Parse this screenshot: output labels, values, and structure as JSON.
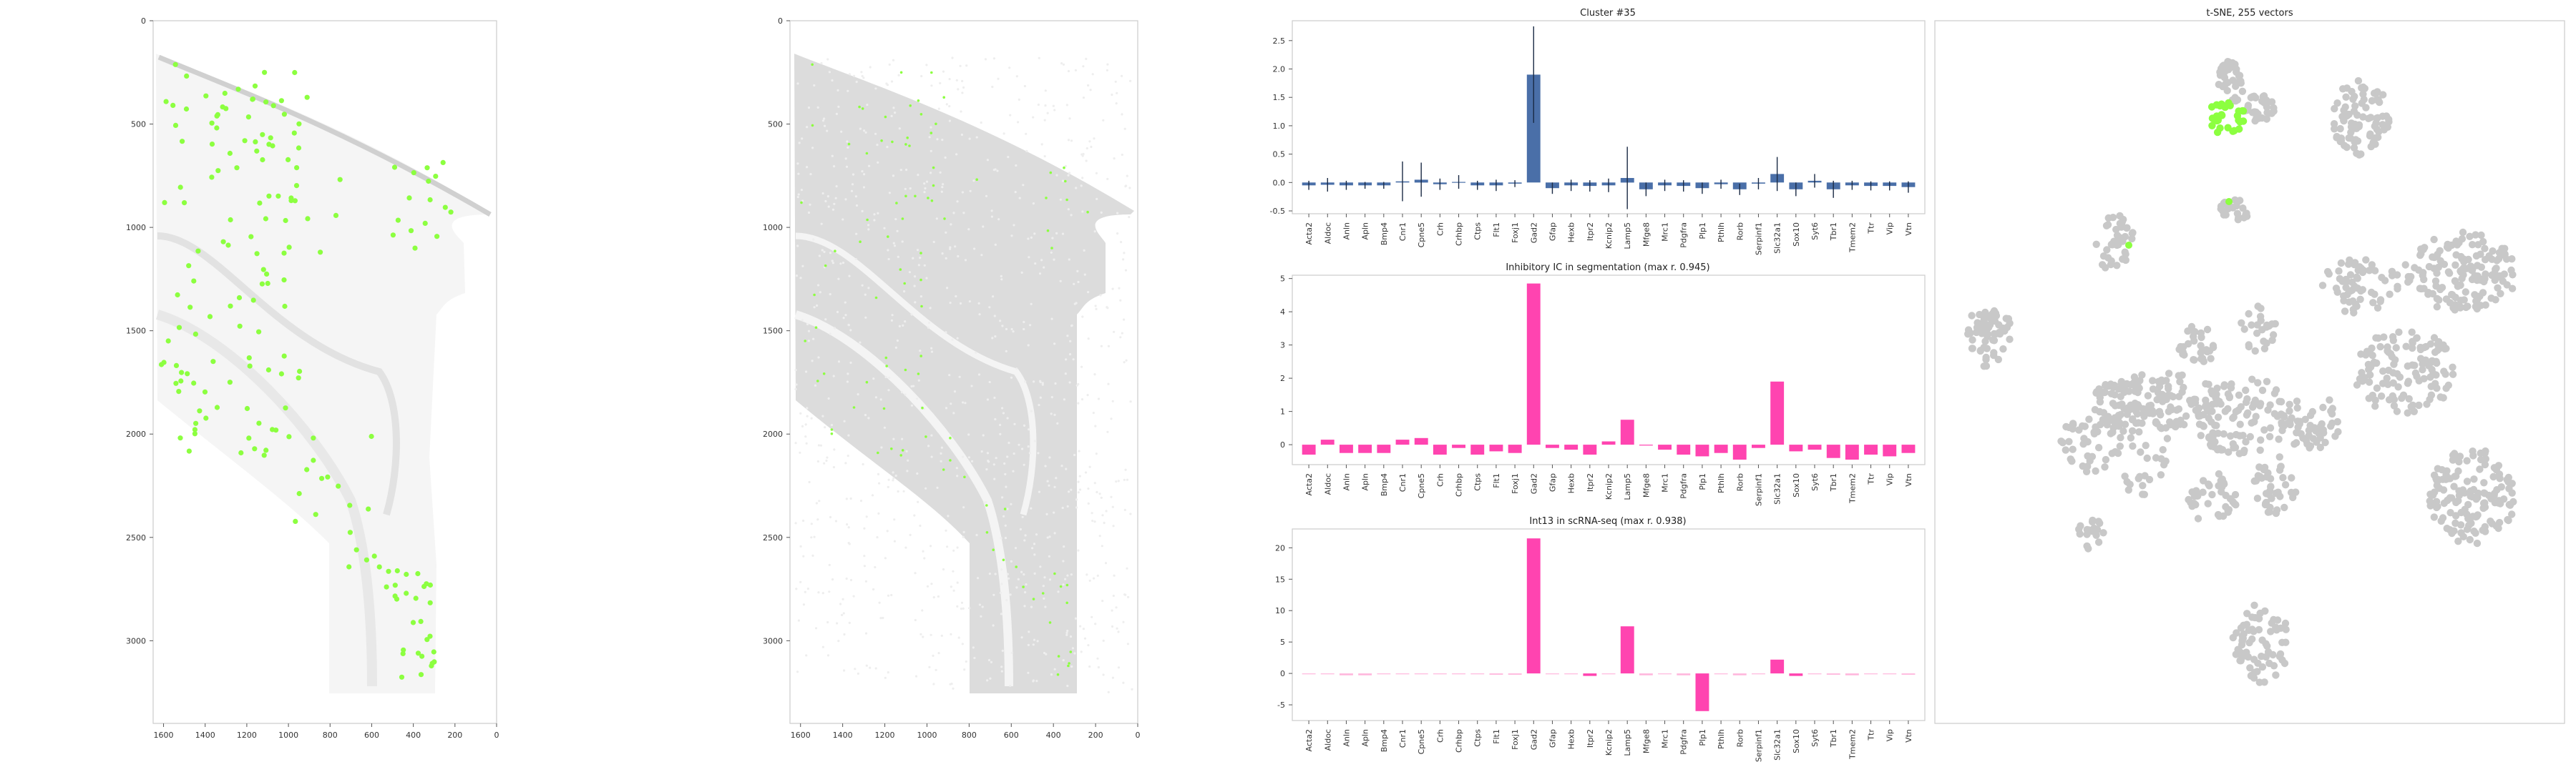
{
  "figure": {
    "panel_titles": {
      "cluster": "Cluster #35",
      "segmentation": "Inhibitory IC in segmentation (max r. 0.945)",
      "scrna": "Int13 in scRNA-seq (max r. 0.938)",
      "tsne": "t-SNE, 255 vectors"
    }
  },
  "colors": {
    "highlight": "#8cff40",
    "background_cells": "#c8c8c8",
    "bar_blue": "#4a6fa8",
    "bar_pink": "#ff44b0",
    "bar_pink_faint": "#ffb6dc",
    "frame": "#cccccc"
  },
  "chart_data": [
    {
      "id": "tissue_map_1",
      "type": "scatter",
      "title": "",
      "x_ticks": [
        "1600",
        "1400",
        "1200",
        "1000",
        "800",
        "600",
        "400",
        "200",
        "0"
      ],
      "y_ticks": [
        "0",
        "500",
        "1000",
        "1500",
        "2000",
        "2500",
        "3000"
      ],
      "xlim": [
        1650,
        0
      ],
      "ylim": [
        3400,
        0
      ],
      "series": [
        {
          "name": "highlighted cells",
          "color": "#8cff40"
        }
      ]
    },
    {
      "id": "tissue_map_2",
      "type": "scatter",
      "title": "",
      "x_ticks": [
        "1600",
        "1400",
        "1200",
        "1000",
        "800",
        "600",
        "400",
        "200",
        "0"
      ],
      "y_ticks": [
        "0",
        "500",
        "1000",
        "1500",
        "2000",
        "2500",
        "3000"
      ],
      "xlim": [
        1650,
        0
      ],
      "ylim": [
        3400,
        0
      ],
      "series": [
        {
          "name": "segmented cells",
          "color": "#c8c8c8"
        },
        {
          "name": "highlighted cells",
          "color": "#8cff40"
        }
      ]
    },
    {
      "id": "cluster_bar",
      "type": "bar",
      "title": "Cluster #35",
      "categories": [
        "Acta2",
        "Aldoc",
        "Anln",
        "Apln",
        "Bmp4",
        "Cnr1",
        "Cpne5",
        "Crh",
        "Crhbp",
        "Ctps",
        "Flt1",
        "Foxj1",
        "Gad2",
        "Gfap",
        "Hexb",
        "Itpr2",
        "Kcnip2",
        "Lamp5",
        "Mfge8",
        "Mrc1",
        "Pdgfra",
        "Plp1",
        "Pthlh",
        "Rorb",
        "Serpinf1",
        "Slc32a1",
        "Sox10",
        "Syt6",
        "Tbr1",
        "Tmem2",
        "Ttr",
        "Vip",
        "Vtn"
      ],
      "values": [
        -0.05,
        -0.04,
        -0.05,
        -0.05,
        -0.05,
        0.02,
        0.05,
        -0.03,
        0.01,
        -0.05,
        -0.05,
        -0.02,
        1.9,
        -0.1,
        -0.05,
        -0.06,
        -0.05,
        0.08,
        -0.12,
        -0.05,
        -0.06,
        -0.1,
        -0.03,
        -0.12,
        -0.02,
        0.15,
        -0.12,
        0.03,
        -0.12,
        -0.05,
        -0.06,
        -0.06,
        -0.08
      ],
      "errors": [
        0.08,
        0.12,
        0.08,
        0.06,
        0.06,
        0.35,
        0.3,
        0.1,
        0.12,
        0.08,
        0.1,
        0.06,
        0.85,
        0.1,
        0.1,
        0.1,
        0.12,
        0.55,
        0.12,
        0.1,
        0.1,
        0.1,
        0.08,
        0.1,
        0.1,
        0.3,
        0.12,
        0.12,
        0.15,
        0.08,
        0.08,
        0.08,
        0.1
      ],
      "y_ticks": [
        "2.5",
        "2.0",
        "1.5",
        "1.0",
        "0.5",
        "0.0",
        "-0.5"
      ],
      "ylim": [
        -0.55,
        2.85
      ]
    },
    {
      "id": "segmentation_bar",
      "type": "bar",
      "title": "Inhibitory IC in segmentation (max r. 0.945)",
      "categories": [
        "Acta2",
        "Aldoc",
        "Anln",
        "Apln",
        "Bmp4",
        "Cnr1",
        "Cpne5",
        "Crh",
        "Crhbp",
        "Ctps",
        "Flt1",
        "Foxj1",
        "Gad2",
        "Gfap",
        "Hexb",
        "Itpr2",
        "Kcnip2",
        "Lamp5",
        "Mfge8",
        "Mrc1",
        "Pdgfra",
        "Plp1",
        "Pthlh",
        "Rorb",
        "Serpinf1",
        "Slc32a1",
        "Sox10",
        "Syt6",
        "Tbr1",
        "Tmem2",
        "Ttr",
        "Vip",
        "Vtn"
      ],
      "values": [
        -0.3,
        0.15,
        -0.25,
        -0.25,
        -0.25,
        0.15,
        0.2,
        -0.3,
        -0.1,
        -0.3,
        -0.2,
        -0.25,
        4.85,
        -0.1,
        -0.15,
        -0.3,
        0.1,
        0.75,
        -0.02,
        -0.15,
        -0.3,
        -0.35,
        -0.25,
        -0.45,
        -0.1,
        1.9,
        -0.2,
        -0.15,
        -0.4,
        -0.45,
        -0.3,
        -0.35,
        -0.25
      ],
      "y_ticks": [
        "5",
        "4",
        "3",
        "2",
        "1",
        "0"
      ],
      "ylim": [
        -0.6,
        5.1
      ]
    },
    {
      "id": "scrna_bar",
      "type": "bar",
      "title": "Int13 in scRNA-seq (max r. 0.938)",
      "categories": [
        "Acta2",
        "Aldoc",
        "Anln",
        "Apln",
        "Bmp4",
        "Cnr1",
        "Cpne5",
        "Crh",
        "Crhbp",
        "Ctps",
        "Flt1",
        "Foxj1",
        "Gad2",
        "Gfap",
        "Hexb",
        "Itpr2",
        "Kcnip2",
        "Lamp5",
        "Mfge8",
        "Mrc1",
        "Pdgfra",
        "Plp1",
        "Pthlh",
        "Rorb",
        "Serpinf1",
        "Slc32a1",
        "Sox10",
        "Syt6",
        "Tbr1",
        "Tmem2",
        "Ttr",
        "Vip",
        "Vtn"
      ],
      "values": [
        0,
        -0.1,
        -0.3,
        -0.3,
        -0.1,
        0,
        0,
        0,
        0,
        0,
        -0.2,
        -0.2,
        21.5,
        0,
        -0.1,
        -0.4,
        0,
        7.5,
        -0.3,
        0,
        -0.3,
        -6,
        0,
        -0.3,
        0,
        2.2,
        -0.4,
        0,
        -0.2,
        -0.3,
        0,
        -0.1,
        -0.2
      ],
      "y_ticks": [
        "20",
        "15",
        "10",
        "5",
        "0",
        "-5"
      ],
      "ylim": [
        -7.5,
        23
      ]
    },
    {
      "id": "tsne",
      "type": "scatter",
      "title": "t-SNE, 255 vectors",
      "series": [
        {
          "name": "all vectors",
          "color": "#c8c8c8"
        },
        {
          "name": "cluster #35",
          "color": "#8cff40"
        }
      ]
    }
  ]
}
